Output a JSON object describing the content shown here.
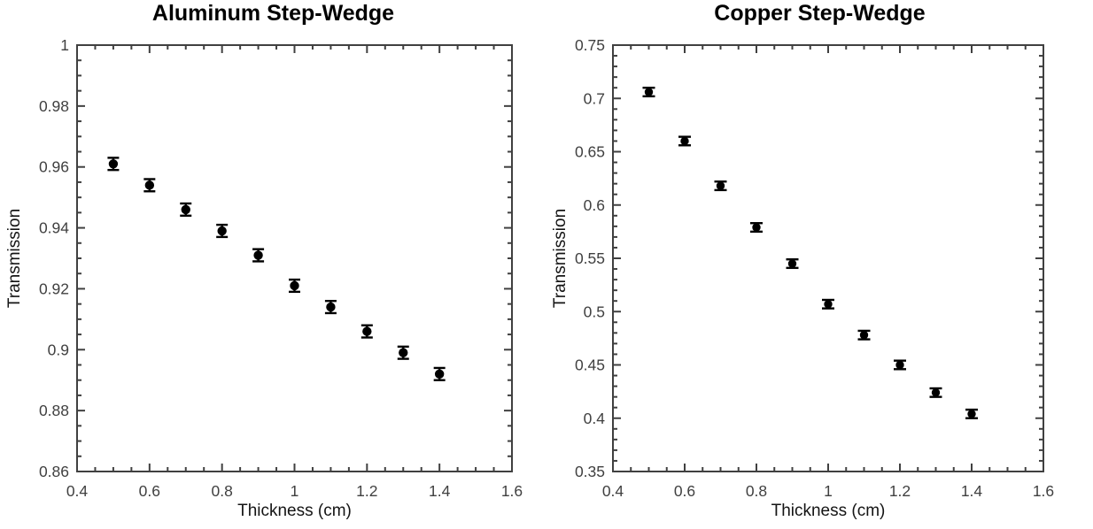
{
  "figure": {
    "background_color": "#ffffff",
    "axis_color": "#404040",
    "tick_label_color": "#404040",
    "axis_title_color": "#141414",
    "marker_color": "#000000"
  },
  "chart_data": [
    {
      "type": "scatter",
      "title": "Aluminum Step-Wedge",
      "xlabel": "Thickness (cm)",
      "ylabel": "Transmission",
      "xlim": [
        0.4,
        1.6
      ],
      "ylim": [
        0.86,
        1.0
      ],
      "x_tick_values": [
        0.4,
        0.6,
        0.8,
        1.0,
        1.2,
        1.4,
        1.6
      ],
      "x_tick_labels": [
        "0.4",
        "0.6",
        "0.8",
        "1",
        "1.2",
        "1.4",
        "1.6"
      ],
      "x_minor_step": 0.05,
      "y_tick_values": [
        0.86,
        0.88,
        0.9,
        0.92,
        0.94,
        0.96,
        0.98,
        1.0
      ],
      "y_tick_labels": [
        "0.86",
        "0.88",
        "0.9",
        "0.92",
        "0.94",
        "0.96",
        "0.98",
        "1"
      ],
      "y_minor_step": 0.005,
      "x": [
        0.5,
        0.6,
        0.7,
        0.8,
        0.9,
        1.0,
        1.1,
        1.2,
        1.3,
        1.4
      ],
      "y": [
        0.961,
        0.954,
        0.946,
        0.939,
        0.931,
        0.921,
        0.914,
        0.906,
        0.899,
        0.892
      ],
      "y_err": 0.002,
      "marker": "filled-circle-with-error-bars",
      "grid": false,
      "legend": "none"
    },
    {
      "type": "scatter",
      "title": "Copper Step-Wedge",
      "xlabel": "Thickness (cm)",
      "ylabel": "Transmission",
      "xlim": [
        0.4,
        1.6
      ],
      "ylim": [
        0.35,
        0.75
      ],
      "x_tick_values": [
        0.4,
        0.6,
        0.8,
        1.0,
        1.2,
        1.4,
        1.6
      ],
      "x_tick_labels": [
        "0.4",
        "0.6",
        "0.8",
        "1",
        "1.2",
        "1.4",
        "1.6"
      ],
      "x_minor_step": 0.05,
      "y_tick_values": [
        0.35,
        0.4,
        0.45,
        0.5,
        0.55,
        0.6,
        0.65,
        0.7,
        0.75
      ],
      "y_tick_labels": [
        "0.35",
        "0.4",
        "0.45",
        "0.5",
        "0.55",
        "0.6",
        "0.65",
        "0.7",
        "0.75"
      ],
      "y_minor_step": 0.01,
      "x": [
        0.5,
        0.6,
        0.7,
        0.8,
        0.9,
        1.0,
        1.1,
        1.2,
        1.3,
        1.4
      ],
      "y": [
        0.706,
        0.66,
        0.618,
        0.579,
        0.545,
        0.507,
        0.478,
        0.45,
        0.424,
        0.404
      ],
      "y_err": 0.004,
      "marker": "filled-circle-with-error-bars",
      "grid": false,
      "legend": "none"
    }
  ]
}
